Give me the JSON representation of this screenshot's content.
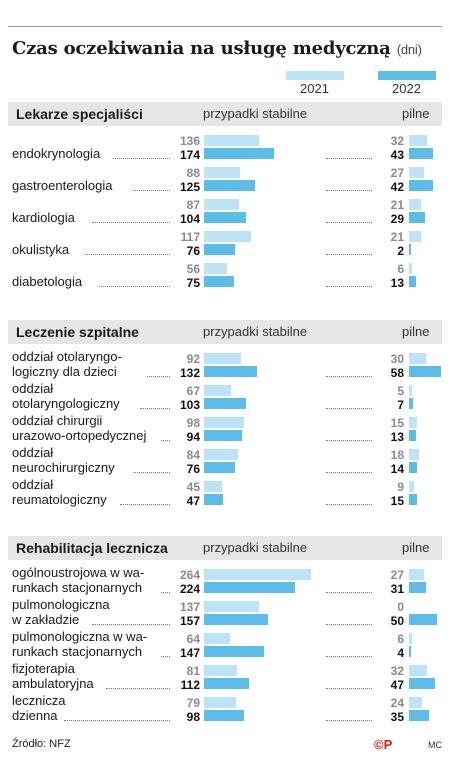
{
  "title": "Czas oczekiwania na usługę medyczną",
  "unit": "(dni)",
  "legend": {
    "y2021": "2021",
    "y2022": "2022"
  },
  "colors": {
    "y2021": "#bfe3f6",
    "y2022": "#5bbde8"
  },
  "footer": {
    "source": "Źródło: NFZ",
    "logo": "©P",
    "credit": "MC"
  },
  "chart_data": [
    {
      "type": "bar",
      "title": "Lekarze specjaliści",
      "column_headers": [
        "przypadki stabilne",
        "pilne"
      ],
      "series_names": [
        "2021",
        "2022"
      ],
      "categories": [
        "endokrynologia",
        "gastroenterologia",
        "kardiologia",
        "okulistyka",
        "diabetologia"
      ],
      "stabilne": {
        "2021": [
          136,
          88,
          87,
          117,
          56
        ],
        "2022": [
          174,
          125,
          104,
          76,
          75
        ]
      },
      "pilne": {
        "2021": [
          32,
          27,
          21,
          21,
          6
        ],
        "2022": [
          43,
          42,
          29,
          2,
          13
        ]
      }
    },
    {
      "type": "bar",
      "title": "Leczenie szpitalne",
      "column_headers": [
        "przypadki stabilne",
        "pilne"
      ],
      "series_names": [
        "2021",
        "2022"
      ],
      "categories": [
        [
          "oddział otolaryngo-",
          "logiczny dla dzieci"
        ],
        [
          "oddział",
          "otolaryngologiczny"
        ],
        [
          "oddział chirurgii",
          "urazowo-ortopedycznej"
        ],
        [
          "oddział",
          "neurochirurgiczny"
        ],
        [
          "oddział",
          "reumatologiczny"
        ]
      ],
      "stabilne": {
        "2021": [
          92,
          67,
          98,
          84,
          45
        ],
        "2022": [
          132,
          103,
          94,
          76,
          47
        ]
      },
      "pilne": {
        "2021": [
          30,
          5,
          15,
          18,
          9
        ],
        "2022": [
          58,
          7,
          13,
          14,
          15
        ]
      }
    },
    {
      "type": "bar",
      "title": "Rehabilitacja lecznicza",
      "column_headers": [
        "przypadki stabilne",
        "pilne"
      ],
      "series_names": [
        "2021",
        "2022"
      ],
      "categories": [
        [
          "ogólnoustrojowa w wa-",
          "runkach stacjonarnych"
        ],
        [
          "pulmonologiczna",
          "w zakładzie"
        ],
        [
          "pulmonologiczna w wa-",
          "runkach stacjonarnych"
        ],
        [
          "fizjoterapia",
          "ambulatoryjna"
        ],
        [
          "lecznicza",
          "dzienna"
        ]
      ],
      "stabilne": {
        "2021": [
          264,
          137,
          64,
          81,
          79
        ],
        "2022": [
          224,
          157,
          147,
          112,
          98
        ]
      },
      "pilne": {
        "2021": [
          27,
          0,
          6,
          32,
          24
        ],
        "2022": [
          31,
          50,
          4,
          47,
          35
        ]
      }
    }
  ]
}
